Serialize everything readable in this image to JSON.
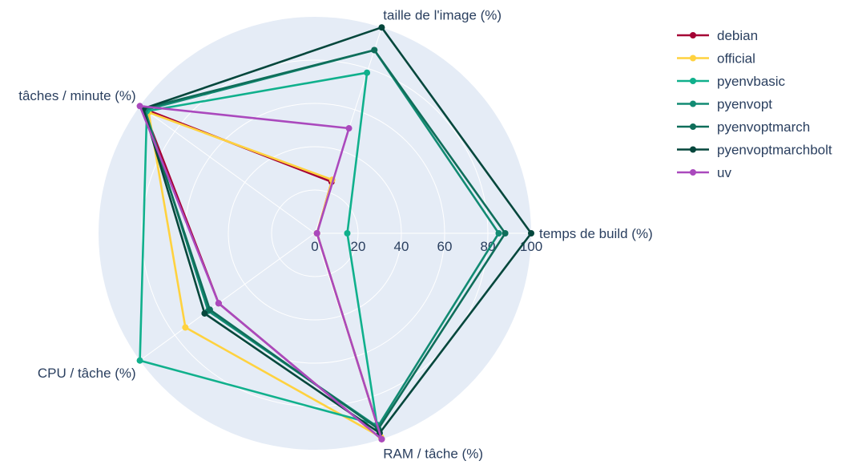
{
  "chart_data": {
    "type": "radar",
    "axes": [
      "temps de build (%)",
      "taille de l'image (%)",
      "tâches / minute (%)",
      "CPU / tâche (%)",
      "RAM / tâche (%)"
    ],
    "radial_range": [
      0,
      100
    ],
    "radial_ticks": [
      "0",
      "20",
      "40",
      "60",
      "80",
      "100"
    ],
    "grid": true,
    "legend_position": "top-right",
    "background_color": "#e5ecf6",
    "series": [
      {
        "name": "debian",
        "color": "#a50034",
        "values": [
          1,
          25,
          98,
          55,
          100
        ]
      },
      {
        "name": "official",
        "color": "#ffd23f",
        "values": [
          1,
          26,
          95,
          74,
          99
        ]
      },
      {
        "name": "pyenvbasic",
        "color": "#10b08c",
        "values": [
          15,
          78,
          96,
          100,
          93
        ]
      },
      {
        "name": "pyenvopt",
        "color": "#128b73",
        "values": [
          85,
          89,
          97,
          61,
          94
        ]
      },
      {
        "name": "pyenvoptmarch",
        "color": "#0f6e5a",
        "values": [
          88,
          89,
          98,
          60,
          95
        ]
      },
      {
        "name": "pyenvoptmarchbolt",
        "color": "#05473c",
        "values": [
          100,
          100,
          98,
          63,
          97
        ]
      },
      {
        "name": "uv",
        "color": "#aa49bd",
        "values": [
          1,
          51,
          100,
          55,
          100
        ]
      }
    ]
  }
}
